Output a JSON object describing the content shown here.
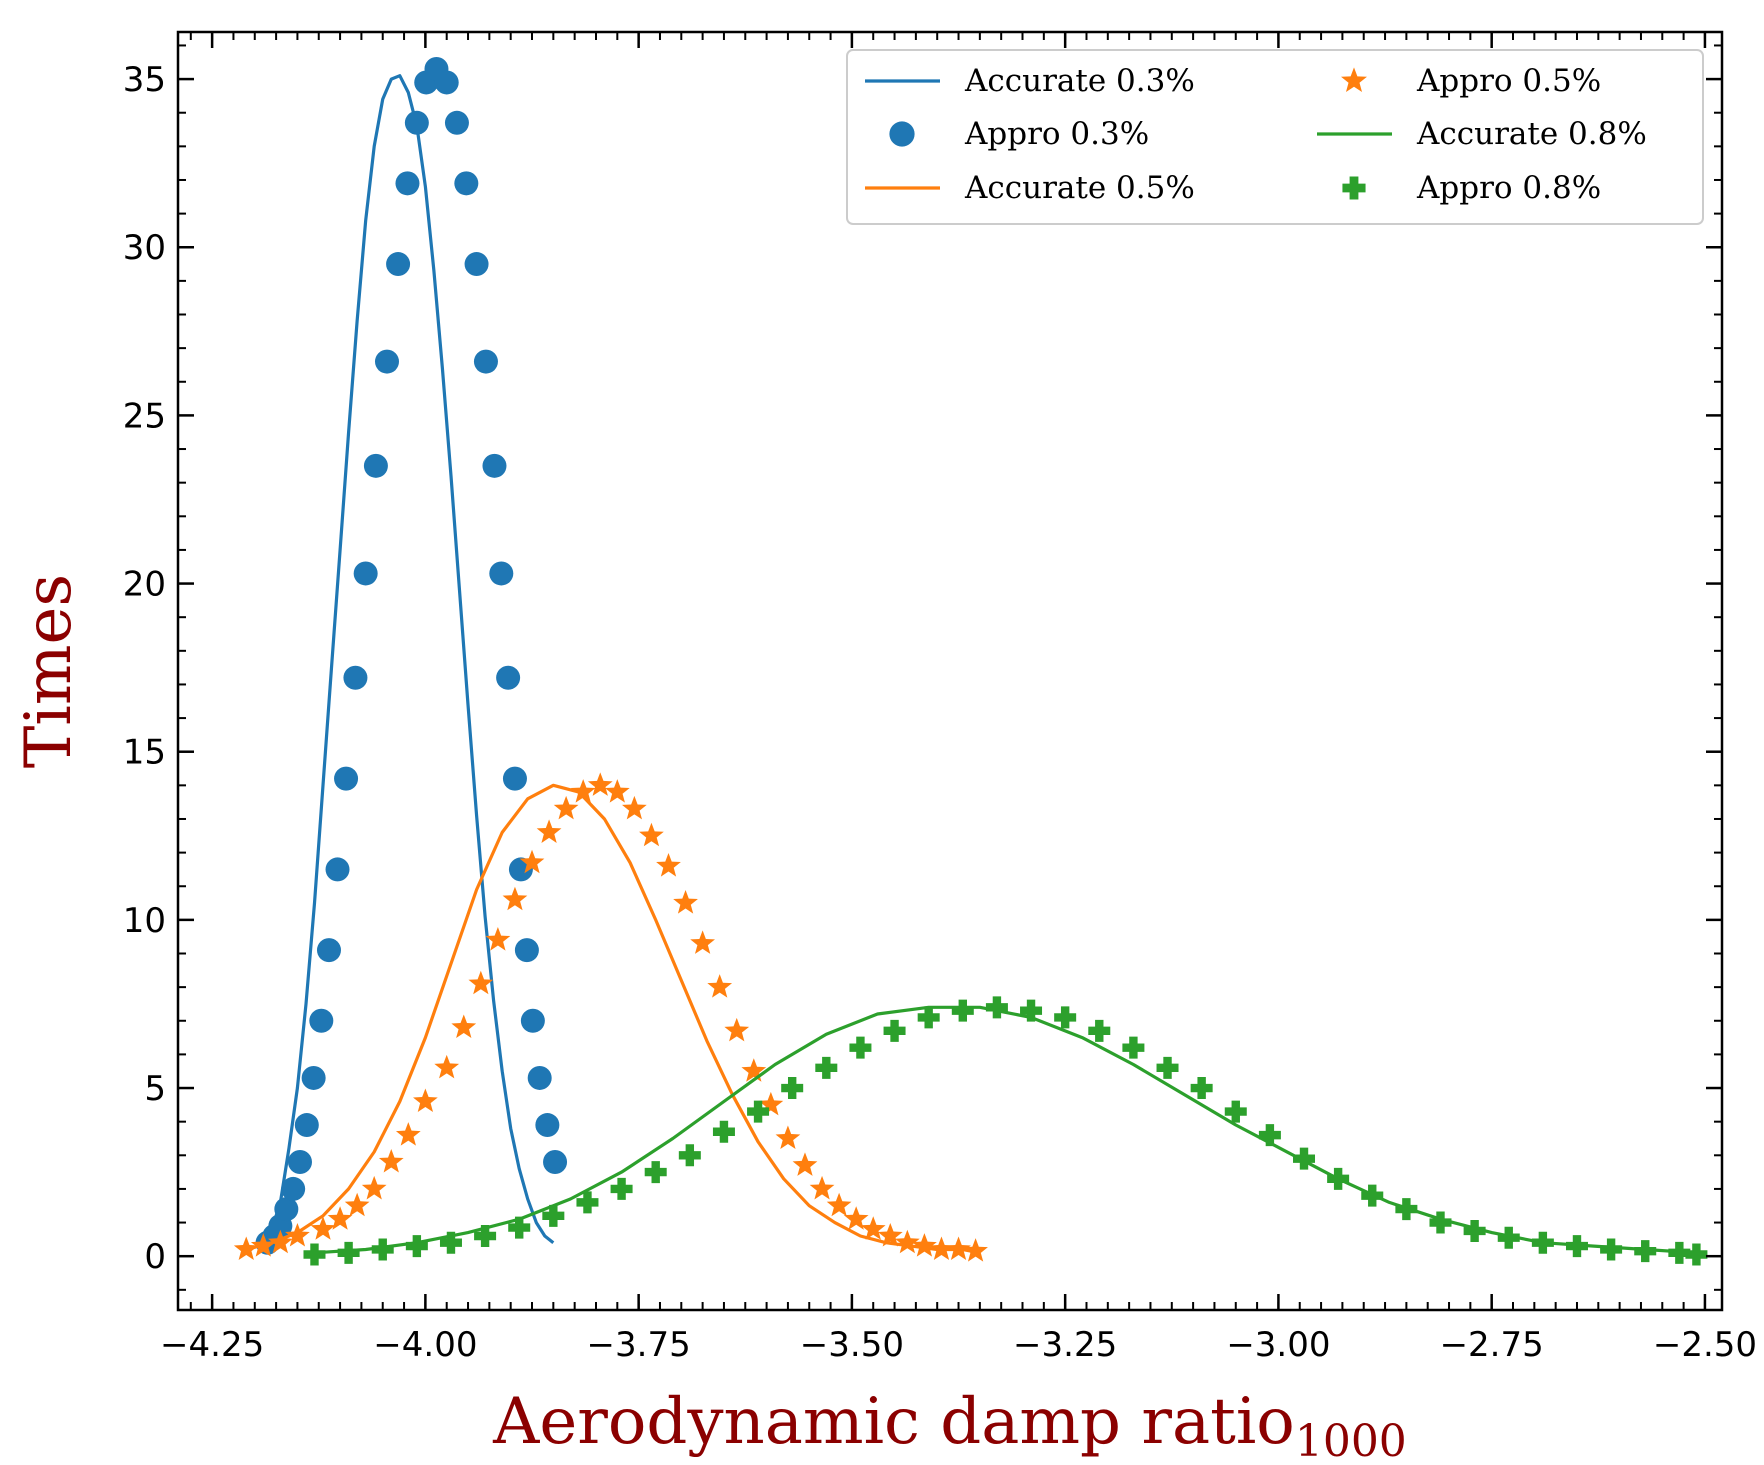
{
  "chart_data": {
    "type": "line",
    "title": "",
    "xlabel": "Aerodynamic damp ratio",
    "xlabel_subscript": "1000",
    "ylabel": "Times",
    "xlim": [
      -4.29,
      -2.48
    ],
    "ylim": [
      -1.6,
      36.4
    ],
    "x_ticks": [
      -4.25,
      -4.0,
      -3.75,
      -3.5,
      -3.25,
      -3.0,
      -2.75,
      -2.5
    ],
    "x_tick_labels": [
      "−4.25",
      "−4.00",
      "−3.75",
      "−3.50",
      "−3.25",
      "−3.00",
      "−2.75",
      "−2.50"
    ],
    "y_ticks": [
      0,
      5,
      10,
      15,
      20,
      25,
      30,
      35
    ],
    "y_tick_labels": [
      "0",
      "5",
      "10",
      "15",
      "20",
      "25",
      "30",
      "35"
    ],
    "legend_position": "top-right",
    "colors": {
      "blue": "#1f77b4",
      "orange": "#ff7f0e",
      "green": "#2ca02c",
      "axis_title": "#8b0000"
    },
    "series": [
      {
        "name": "Accurate 0.3%",
        "kind": "line",
        "color": "#1f77b4",
        "x": [
          -4.19,
          -4.18,
          -4.17,
          -4.16,
          -4.15,
          -4.14,
          -4.13,
          -4.12,
          -4.11,
          -4.1,
          -4.09,
          -4.08,
          -4.07,
          -4.06,
          -4.05,
          -4.04,
          -4.03,
          -4.02,
          -4.01,
          -4.0,
          -3.99,
          -3.98,
          -3.97,
          -3.96,
          -3.95,
          -3.94,
          -3.93,
          -3.92,
          -3.91,
          -3.9,
          -3.89,
          -3.88,
          -3.87,
          -3.86,
          -3.85
        ],
        "y": [
          0.3,
          0.8,
          1.6,
          3.2,
          5.0,
          7.5,
          10.5,
          14.0,
          17.5,
          21.0,
          24.5,
          27.8,
          30.8,
          33.0,
          34.4,
          35.0,
          35.1,
          34.6,
          33.6,
          31.8,
          29.3,
          26.4,
          23.2,
          19.8,
          16.4,
          13.1,
          10.1,
          7.6,
          5.5,
          3.8,
          2.6,
          1.7,
          1.0,
          0.6,
          0.4
        ]
      },
      {
        "name": "Appro 0.3%",
        "kind": "marker",
        "marker": "circle",
        "color": "#1f77b4",
        "x": [
          -4.185,
          -4.177,
          -4.17,
          -4.163,
          -4.155,
          -4.147,
          -4.139,
          -4.131,
          -4.122,
          -4.113,
          -4.103,
          -4.093,
          -4.082,
          -4.07,
          -4.058,
          -4.045,
          -4.032,
          -4.021,
          -4.01,
          -3.999,
          -3.987,
          -3.975,
          -3.963,
          -3.952,
          -3.94,
          -3.929,
          -3.919,
          -3.911,
          -3.903,
          -3.895,
          -3.888,
          -3.881,
          -3.874,
          -3.866,
          -3.857,
          -3.848
        ],
        "y": [
          0.4,
          0.6,
          0.9,
          1.4,
          2.0,
          2.8,
          3.9,
          5.3,
          7.0,
          9.1,
          11.5,
          14.2,
          17.2,
          20.3,
          23.5,
          26.6,
          29.5,
          31.9,
          33.7,
          34.9,
          35.3,
          34.9,
          33.7,
          31.9,
          29.5,
          26.6,
          23.5,
          20.3,
          17.2,
          14.2,
          11.5,
          9.1,
          7.0,
          5.3,
          3.9,
          2.8
        ]
      },
      {
        "name": "Accurate 0.5%",
        "kind": "line",
        "color": "#ff7f0e",
        "x": [
          -4.21,
          -4.18,
          -4.15,
          -4.12,
          -4.09,
          -4.06,
          -4.03,
          -4.0,
          -3.97,
          -3.94,
          -3.91,
          -3.88,
          -3.85,
          -3.82,
          -3.79,
          -3.76,
          -3.73,
          -3.7,
          -3.67,
          -3.64,
          -3.61,
          -3.58,
          -3.55,
          -3.52,
          -3.49,
          -3.46,
          -3.43,
          -3.4,
          -3.37,
          -3.35
        ],
        "y": [
          0.2,
          0.4,
          0.7,
          1.2,
          2.0,
          3.1,
          4.6,
          6.5,
          8.7,
          10.9,
          12.6,
          13.6,
          14.0,
          13.8,
          13.0,
          11.7,
          10.0,
          8.2,
          6.4,
          4.8,
          3.4,
          2.3,
          1.5,
          1.0,
          0.6,
          0.4,
          0.3,
          0.2,
          0.2,
          0.1
        ]
      },
      {
        "name": "Appro 0.5%",
        "kind": "marker",
        "marker": "star",
        "color": "#ff7f0e",
        "x": [
          -4.21,
          -4.19,
          -4.17,
          -4.15,
          -4.12,
          -4.1,
          -4.08,
          -4.06,
          -4.04,
          -4.02,
          -4.0,
          -3.975,
          -3.955,
          -3.935,
          -3.915,
          -3.895,
          -3.875,
          -3.855,
          -3.835,
          -3.815,
          -3.795,
          -3.775,
          -3.755,
          -3.735,
          -3.715,
          -3.695,
          -3.675,
          -3.655,
          -3.635,
          -3.615,
          -3.595,
          -3.575,
          -3.555,
          -3.535,
          -3.515,
          -3.495,
          -3.475,
          -3.455,
          -3.435,
          -3.415,
          -3.395,
          -3.375,
          -3.355
        ],
        "y": [
          0.2,
          0.3,
          0.4,
          0.6,
          0.8,
          1.1,
          1.5,
          2.0,
          2.8,
          3.6,
          4.6,
          5.6,
          6.8,
          8.1,
          9.4,
          10.6,
          11.7,
          12.6,
          13.3,
          13.8,
          14.0,
          13.8,
          13.3,
          12.5,
          11.6,
          10.5,
          9.3,
          8.0,
          6.7,
          5.5,
          4.5,
          3.5,
          2.7,
          2.0,
          1.5,
          1.1,
          0.8,
          0.6,
          0.4,
          0.3,
          0.2,
          0.2,
          0.15
        ]
      },
      {
        "name": "Accurate 0.8%",
        "kind": "line",
        "color": "#2ca02c",
        "x": [
          -4.13,
          -4.07,
          -4.01,
          -3.95,
          -3.89,
          -3.83,
          -3.77,
          -3.71,
          -3.65,
          -3.59,
          -3.53,
          -3.47,
          -3.41,
          -3.35,
          -3.29,
          -3.23,
          -3.17,
          -3.11,
          -3.05,
          -2.99,
          -2.93,
          -2.87,
          -2.81,
          -2.75,
          -2.69,
          -2.63,
          -2.57,
          -2.51
        ],
        "y": [
          0.1,
          0.2,
          0.4,
          0.7,
          1.1,
          1.7,
          2.5,
          3.5,
          4.6,
          5.7,
          6.6,
          7.2,
          7.4,
          7.4,
          7.1,
          6.5,
          5.7,
          4.8,
          3.9,
          3.1,
          2.3,
          1.6,
          1.1,
          0.7,
          0.4,
          0.3,
          0.2,
          0.1
        ]
      },
      {
        "name": "Appro 0.8%",
        "kind": "marker",
        "marker": "plus",
        "color": "#2ca02c",
        "x": [
          -4.13,
          -4.09,
          -4.05,
          -4.01,
          -3.97,
          -3.93,
          -3.89,
          -3.85,
          -3.81,
          -3.77,
          -3.73,
          -3.69,
          -3.65,
          -3.61,
          -3.57,
          -3.53,
          -3.49,
          -3.45,
          -3.41,
          -3.37,
          -3.33,
          -3.29,
          -3.25,
          -3.21,
          -3.17,
          -3.13,
          -3.09,
          -3.05,
          -3.01,
          -2.97,
          -2.93,
          -2.89,
          -2.85,
          -2.81,
          -2.77,
          -2.73,
          -2.69,
          -2.65,
          -2.61,
          -2.57,
          -2.53,
          -2.51
        ],
        "y": [
          0.05,
          0.1,
          0.2,
          0.3,
          0.4,
          0.6,
          0.85,
          1.2,
          1.6,
          2.0,
          2.5,
          3.0,
          3.7,
          4.3,
          5.0,
          5.6,
          6.2,
          6.7,
          7.1,
          7.3,
          7.4,
          7.3,
          7.1,
          6.7,
          6.2,
          5.6,
          5.0,
          4.3,
          3.6,
          2.9,
          2.3,
          1.8,
          1.4,
          1.0,
          0.75,
          0.55,
          0.4,
          0.3,
          0.2,
          0.15,
          0.1,
          0.05
        ]
      }
    ],
    "legend": {
      "entries": [
        {
          "label": "Accurate 0.3%",
          "symbol": "line",
          "color": "#1f77b4"
        },
        {
          "label": "Appro 0.3%",
          "symbol": "circle",
          "color": "#1f77b4"
        },
        {
          "label": "Accurate 0.5%",
          "symbol": "line",
          "color": "#ff7f0e"
        },
        {
          "label": "Appro 0.5%",
          "symbol": "star",
          "color": "#ff7f0e"
        },
        {
          "label": "Accurate 0.8%",
          "symbol": "line",
          "color": "#2ca02c"
        },
        {
          "label": "Appro 0.8%",
          "symbol": "plus",
          "color": "#2ca02c"
        }
      ]
    }
  }
}
